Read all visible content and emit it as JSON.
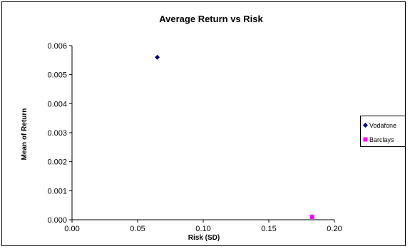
{
  "chart_data": {
    "type": "scatter",
    "title": "Average Return vs Risk",
    "xlabel": "Risk (SD)",
    "ylabel": "Mean of Return",
    "xlim": [
      0,
      0.2
    ],
    "ylim": [
      0,
      0.006
    ],
    "xticks": [
      "0.00",
      "0.05",
      "0.10",
      "0.15",
      "0.20"
    ],
    "yticks": [
      "0.000",
      "0.001",
      "0.002",
      "0.003",
      "0.004",
      "0.005",
      "0.006"
    ],
    "grid": false,
    "legend_position": "right",
    "series": [
      {
        "name": "Vodafone",
        "marker": "diamond",
        "color": "#000080",
        "points": [
          {
            "x": 0.065,
            "y": 0.0056
          }
        ]
      },
      {
        "name": "Barclays",
        "marker": "square",
        "color": "#FF00FF",
        "points": [
          {
            "x": 0.183,
            "y": 0.0001
          }
        ]
      }
    ]
  }
}
